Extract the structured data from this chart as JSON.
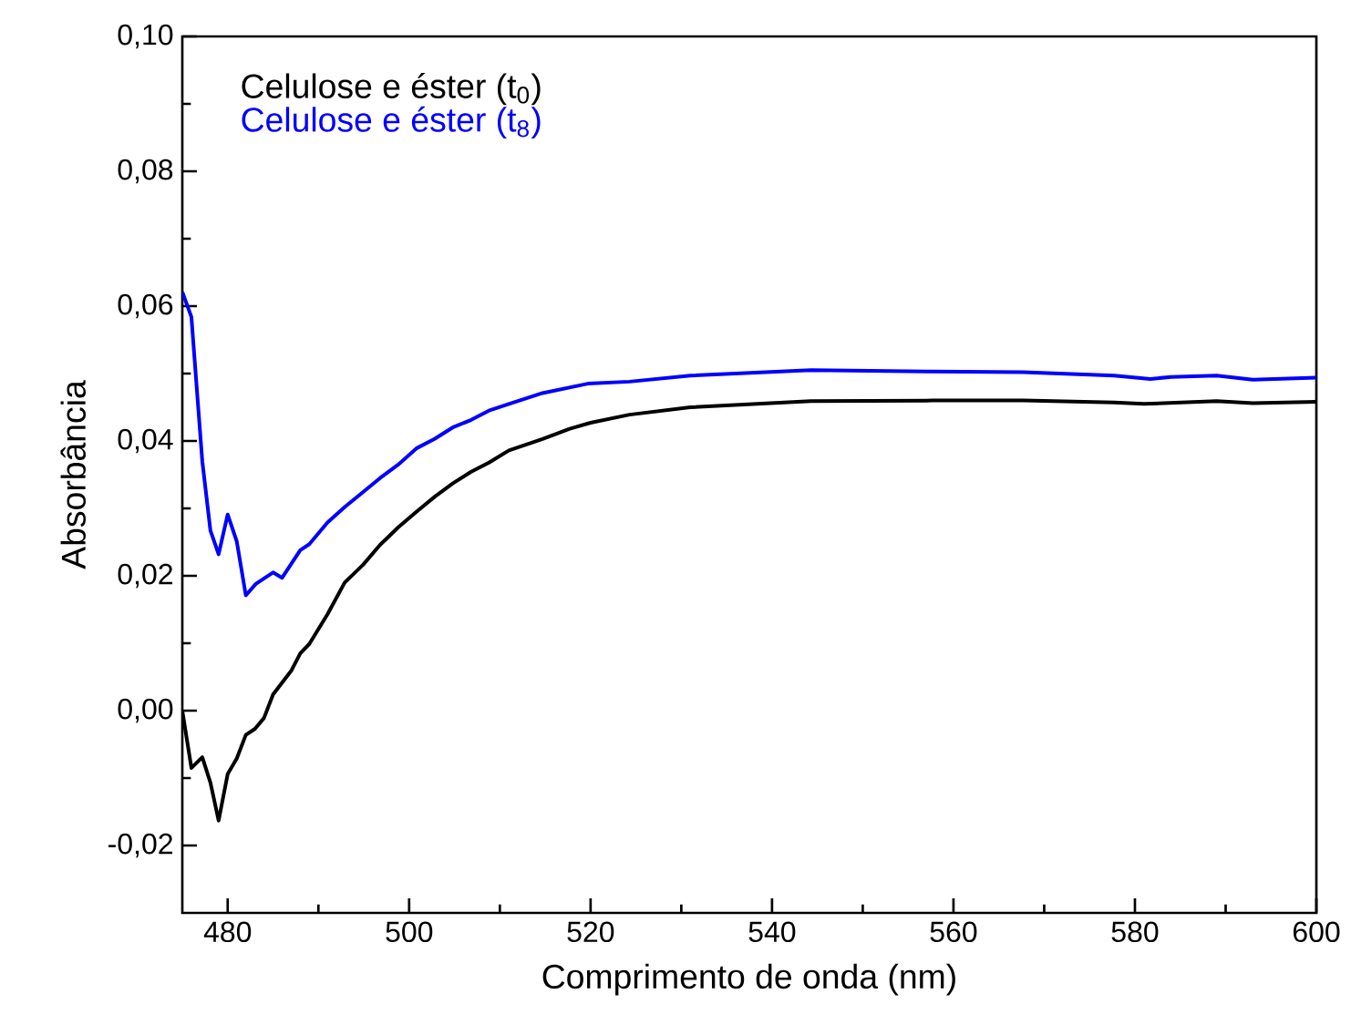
{
  "chart_data": {
    "type": "line",
    "xlabel": "Comprimento de onda (nm)",
    "ylabel": "Absorbância",
    "xlim": [
      475,
      600
    ],
    "xticks": [
      480,
      500,
      520,
      540,
      560,
      580,
      600
    ],
    "ylim": [
      -0.03,
      0.1
    ],
    "yticks": [
      {
        "value": -0.02,
        "label": "-0,02"
      },
      {
        "value": 0,
        "label": "0,00"
      },
      {
        "value": 0.02,
        "label": "0,02"
      },
      {
        "value": 0.04,
        "label": "0,04"
      },
      {
        "value": 0.06,
        "label": "0,06"
      },
      {
        "value": 0.08,
        "label": "0,08"
      },
      {
        "value": 0.1,
        "label": "0,10"
      }
    ],
    "grid": false,
    "legend": "top left",
    "marker": "none",
    "line_style": "solid",
    "series": [
      {
        "name": "Celulose e éster (t$_{0}$)",
        "color": "#000000",
        "x": [
          475,
          476,
          477.2,
          478.1,
          479,
          480,
          481,
          482,
          483,
          484,
          485,
          487,
          488,
          489,
          491,
          492.9,
          494.9,
          496.8,
          498.8,
          500.8,
          502.8,
          504.8,
          506.8,
          508.8,
          511,
          514.7,
          517.7,
          520,
          524.3,
          531,
          544.3,
          557.7,
          567.7,
          577.7,
          581,
          589,
          593,
          600
        ],
        "values": [
          0.0,
          -0.0085,
          -0.0069,
          -0.0107,
          -0.0163,
          -0.0094,
          -0.0071,
          -0.0036,
          -0.0027,
          -0.0011,
          0.0024,
          0.0059,
          0.0085,
          0.0099,
          0.0143,
          0.019,
          0.0216,
          0.0246,
          0.0272,
          0.0295,
          0.0317,
          0.0337,
          0.0354,
          0.0368,
          0.0386,
          0.0403,
          0.0418,
          0.0427,
          0.0439,
          0.045,
          0.0459,
          0.046,
          0.046,
          0.0457,
          0.0455,
          0.0459,
          0.0456,
          0.0458
        ]
      },
      {
        "name": "Celulose e éster (t$_{8}$)",
        "color": "#0000ff",
        "x": [
          475,
          476,
          477.2,
          478.1,
          479,
          480,
          481,
          482,
          483.1,
          485,
          486,
          488,
          489,
          491,
          492.9,
          494.9,
          496.8,
          498.8,
          500.8,
          502.8,
          504.8,
          506.8,
          508.8,
          511,
          514.7,
          519.7,
          524.3,
          531,
          544.3,
          557.7,
          567.7,
          577.7,
          581.7,
          584,
          589,
          593,
          600
        ],
        "values": [
          0.0621,
          0.0584,
          0.037,
          0.0267,
          0.0232,
          0.0291,
          0.0251,
          0.0171,
          0.0188,
          0.0205,
          0.0197,
          0.0238,
          0.0247,
          0.0279,
          0.0302,
          0.0324,
          0.0345,
          0.0365,
          0.0389,
          0.0403,
          0.042,
          0.0431,
          0.0445,
          0.0455,
          0.0471,
          0.0485,
          0.0488,
          0.0497,
          0.0505,
          0.0503,
          0.0502,
          0.0497,
          0.0492,
          0.0495,
          0.0497,
          0.0491,
          0.0494
        ]
      }
    ]
  }
}
